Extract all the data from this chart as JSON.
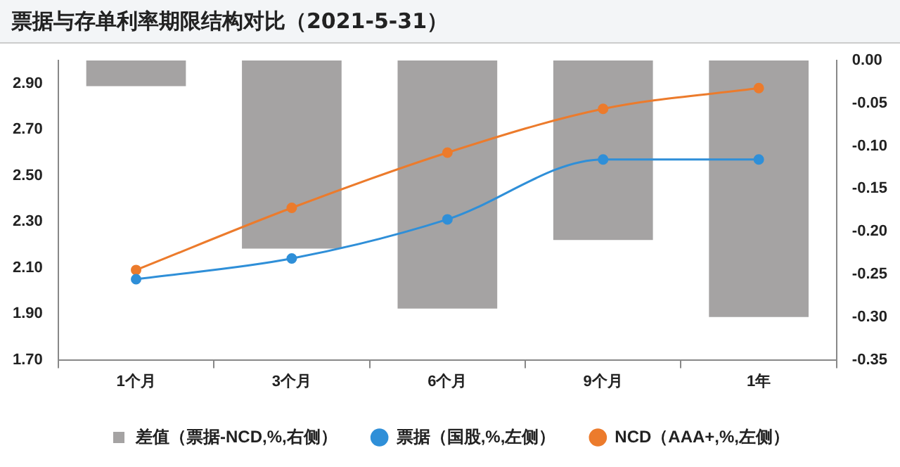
{
  "chart_data": {
    "type": "bar",
    "title": "票据与存单利率期限结构对比（2021-5-31）",
    "categories": [
      "1个月",
      "3个月",
      "6个月",
      "9个月",
      "1年"
    ],
    "series": [
      {
        "name": "差值（票据-NCD,%,右侧）",
        "axis": "y2",
        "color": "#a5a3a3",
        "values": [
          -0.03,
          -0.22,
          -0.29,
          -0.21,
          -0.3
        ]
      },
      {
        "name": "票据（国股,%,左侧）",
        "type": "line",
        "color": "#2f8fd8",
        "values": [
          2.05,
          2.14,
          2.31,
          2.57,
          2.57
        ]
      },
      {
        "name": "NCD（AAA+,%,左侧）",
        "type": "line",
        "color": "#ec7b2c",
        "values": [
          2.09,
          2.36,
          2.6,
          2.79,
          2.88
        ]
      }
    ],
    "ylim": [
      1.7,
      3.0
    ],
    "yticks": [
      {
        "value": 1.7,
        "label": "1.70"
      },
      {
        "value": 1.9,
        "label": "1.90"
      },
      {
        "value": 2.1,
        "label": "2.10"
      },
      {
        "value": 2.3,
        "label": "2.30"
      },
      {
        "value": 2.5,
        "label": "2.50"
      },
      {
        "value": 2.7,
        "label": "2.70"
      },
      {
        "value": 2.9,
        "label": "2.90"
      }
    ],
    "y2lim": [
      -0.35,
      0
    ],
    "y2ticks": [
      {
        "value": -0.35,
        "label": "-0.35"
      },
      {
        "value": -0.3,
        "label": "-0.30"
      },
      {
        "value": -0.25,
        "label": "-0.25"
      },
      {
        "value": -0.2,
        "label": "-0.20"
      },
      {
        "value": -0.15,
        "label": "-0.15"
      },
      {
        "value": -0.1,
        "label": "-0.10"
      },
      {
        "value": -0.05,
        "label": "-0.05"
      },
      {
        "value": 0,
        "label": "0.00"
      }
    ],
    "grid": false,
    "legend": "bottom",
    "marker": "circle",
    "line_style": "solid"
  }
}
